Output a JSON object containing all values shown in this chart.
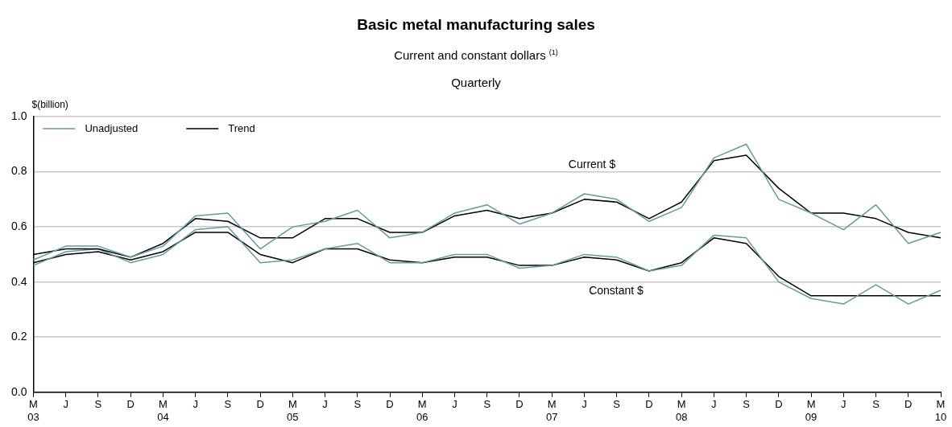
{
  "chart_data": {
    "type": "line",
    "title": "Basic metal manufacturing sales",
    "subtitle": "Current and constant dollars $^{(1)}$\nQuarterly",
    "ylabel": "$(billion)",
    "categories": [
      "M\n03",
      "J",
      "S",
      "D",
      "M\n04",
      "J",
      "S",
      "D",
      "M\n05",
      "J",
      "S",
      "D",
      "M\n06",
      "J",
      "S",
      "D",
      "M\n07",
      "J",
      "S",
      "D",
      "M\n08",
      "J",
      "S",
      "D",
      "M\n09",
      "J",
      "S",
      "D",
      "M\n10"
    ],
    "series": [
      {
        "name": "Unadjusted",
        "color": "#5f9ea0",
        "values": [
          0.48,
          0.53,
          0.53,
          0.49,
          0.53,
          0.64,
          0.65,
          0.52,
          0.6,
          0.62,
          0.66,
          0.56,
          0.58,
          0.65,
          0.68,
          0.61,
          0.65,
          0.72,
          0.7,
          0.62,
          0.67,
          0.85,
          0.9,
          0.7,
          0.65,
          0.59,
          0.68,
          0.54,
          0.58
        ]
      },
      {
        "name": "Trend",
        "color": "#000000",
        "values": [
          0.5,
          0.52,
          0.52,
          0.49,
          0.54,
          0.63,
          0.62,
          0.56,
          0.56,
          0.63,
          0.63,
          0.58,
          0.58,
          0.64,
          0.66,
          0.63,
          0.65,
          0.7,
          0.69,
          0.63,
          0.69,
          0.84,
          0.86,
          0.74,
          0.65,
          0.65,
          0.63,
          0.58,
          0.56
        ]
      },
      {
        "color": "#5f9ea0",
        "values": [
          0.46,
          0.51,
          0.52,
          0.47,
          0.5,
          0.59,
          0.6,
          0.47,
          0.48,
          0.52,
          0.54,
          0.47,
          0.47,
          0.5,
          0.5,
          0.45,
          0.46,
          0.5,
          0.49,
          0.44,
          0.46,
          0.57,
          0.56,
          0.4,
          0.34,
          0.32,
          0.39,
          0.32,
          0.37
        ]
      },
      {
        "color": "#000000",
        "values": [
          0.47,
          0.5,
          0.51,
          0.48,
          0.51,
          0.58,
          0.58,
          0.5,
          0.47,
          0.52,
          0.52,
          0.48,
          0.47,
          0.49,
          0.49,
          0.46,
          0.46,
          0.49,
          0.48,
          0.44,
          0.47,
          0.56,
          0.54,
          0.42,
          0.35,
          0.35,
          0.35,
          0.35,
          0.35
        ]
      }
    ],
    "ylim": [
      0,
      1
    ],
    "yticks": [
      {
        "value": 0,
        "label": "0.0"
      },
      {
        "value": 0.2,
        "label": "0.2"
      },
      {
        "value": 0.4,
        "label": "0.4"
      },
      {
        "value": 0.6,
        "label": "0.6"
      },
      {
        "value": 0.8,
        "label": "0.8"
      },
      {
        "value": 1,
        "label": "1.0"
      }
    ],
    "annotations": [
      "Current $",
      "Constant $"
    ],
    "grid": "y",
    "legend": "top left",
    "marker": "none",
    "line_style": "solid"
  }
}
